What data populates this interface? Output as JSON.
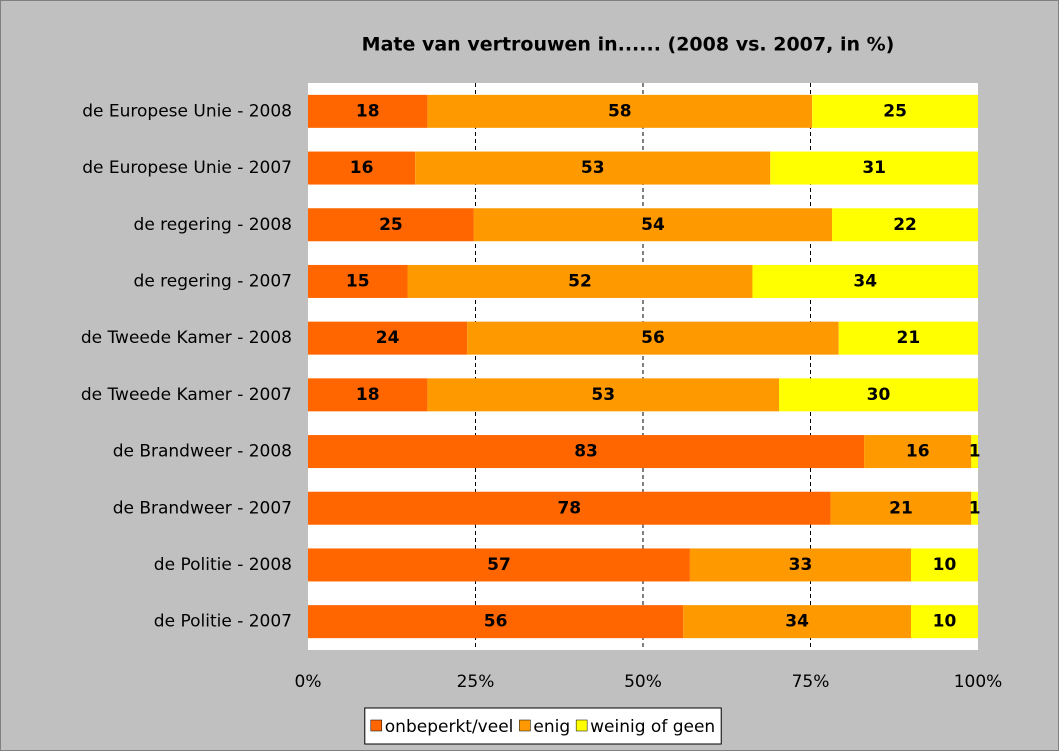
{
  "chart_data": {
    "type": "stacked_barh",
    "stacking": "percent",
    "title": "Mate van vertrouwen in...... (2008 vs. 2007, in %)",
    "categories": [
      "de Europese Unie - 2008",
      "de Europese Unie - 2007",
      "de regering - 2008",
      "de regering - 2007",
      "de Tweede Kamer - 2008",
      "de Tweede Kamer - 2007",
      "de Brandweer - 2008",
      "de Brandweer - 2007",
      "de Politie - 2008",
      "de Politie - 2007"
    ],
    "series": [
      {
        "name": "onbeperkt/veel",
        "color": "#ff6600",
        "values": [
          18,
          16,
          25,
          15,
          24,
          18,
          83,
          78,
          57,
          56
        ]
      },
      {
        "name": "enig",
        "color": "#ff9900",
        "values": [
          58,
          53,
          54,
          52,
          56,
          53,
          16,
          21,
          33,
          34
        ]
      },
      {
        "name": "weinig of geen",
        "color": "#ffff00",
        "values": [
          25,
          31,
          22,
          34,
          21,
          30,
          1,
          1,
          10,
          10
        ]
      }
    ],
    "xlim": [
      0,
      100
    ],
    "xticks": [
      {
        "value": 0,
        "label": "0%"
      },
      {
        "value": 25,
        "label": "25%"
      },
      {
        "value": 50,
        "label": "50%"
      },
      {
        "value": 75,
        "label": "75%"
      },
      {
        "value": 100,
        "label": "100%"
      }
    ],
    "grid": true,
    "legend": "bottom"
  }
}
